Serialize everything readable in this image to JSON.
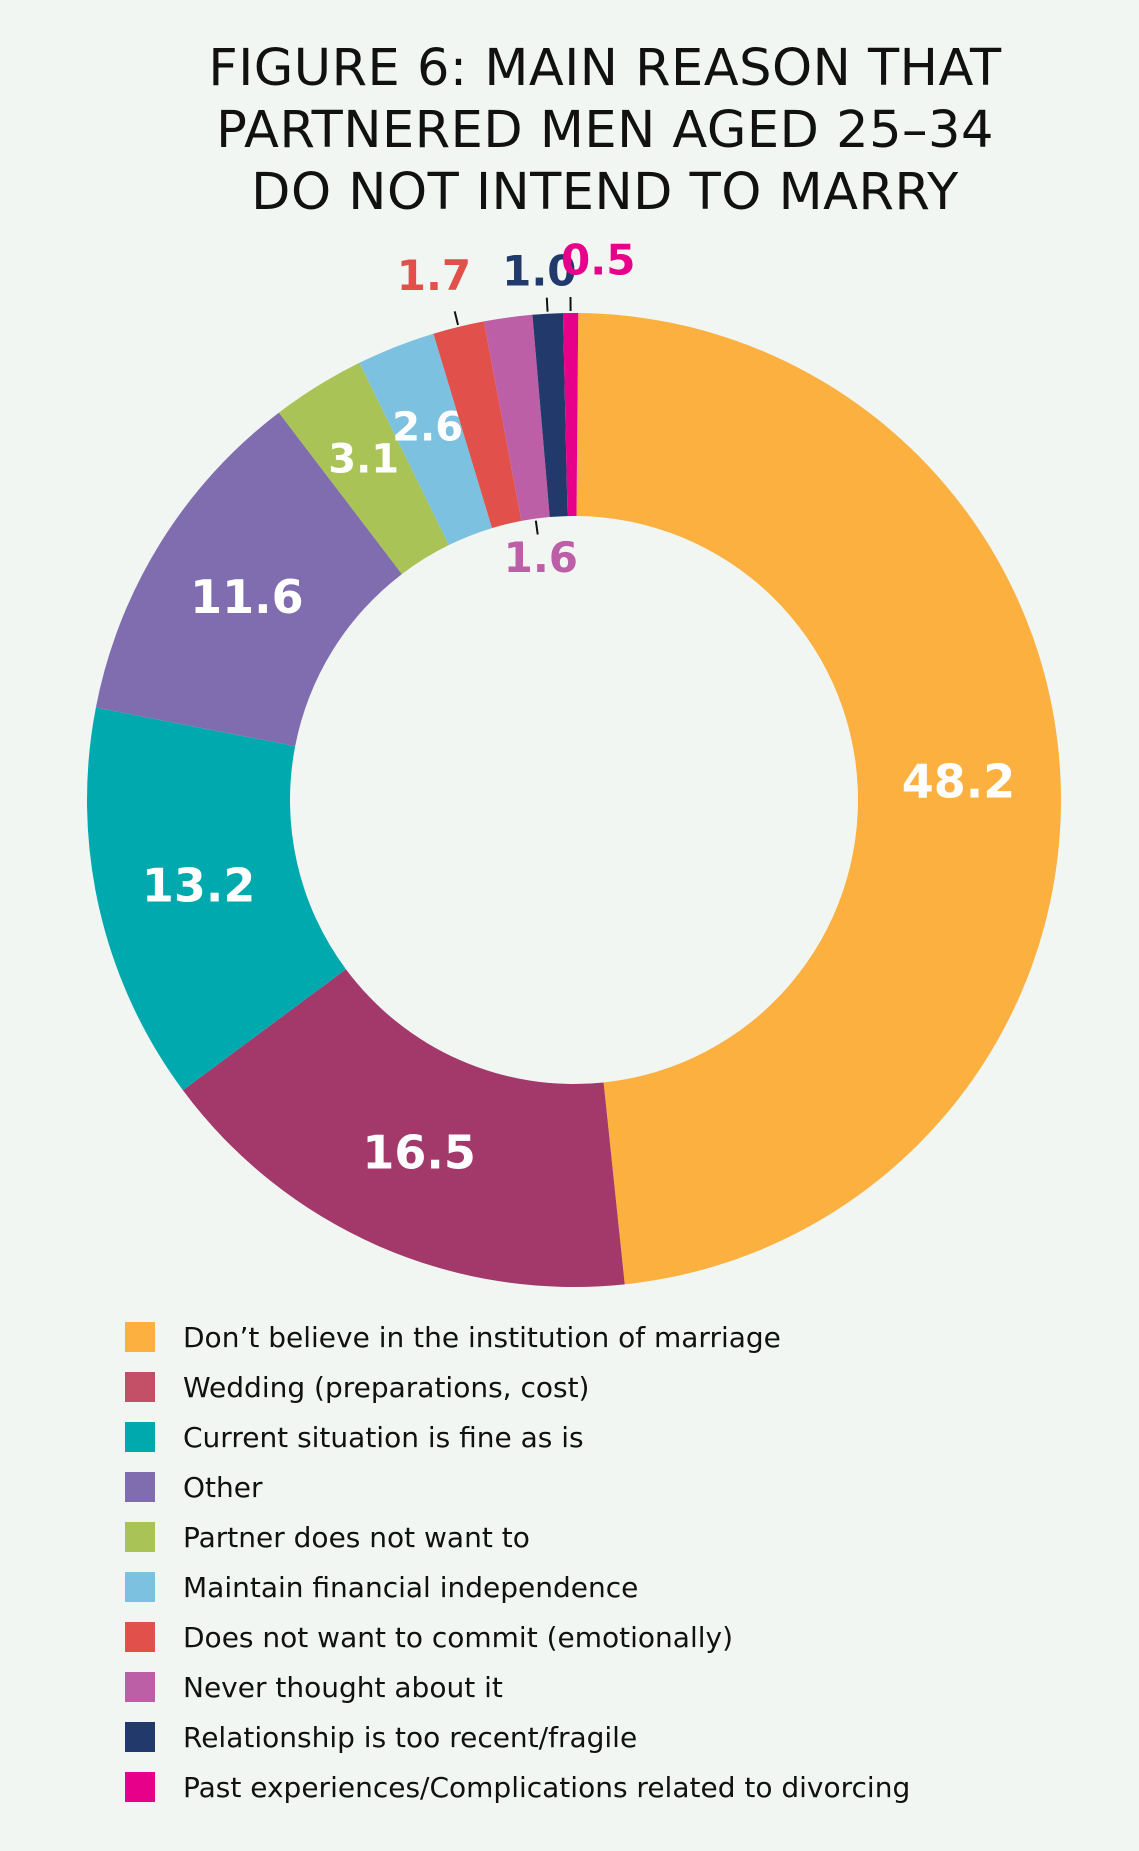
{
  "chart_data": {
    "type": "pie",
    "donut": true,
    "title_lines": [
      "FIGURE 6: MAIN REASON THAT",
      "PARTNERED MEN AGED 25–34",
      "DO NOT INTEND TO MARRY"
    ],
    "slices": [
      {
        "label": "Don’t believe in the institution of marriage",
        "value": 48.2,
        "value_label": "48.2",
        "color": "#fbb040"
      },
      {
        "label": "Wedding (preparations, cost)",
        "value": 16.5,
        "value_label": "16.5",
        "color": "#a3386a"
      },
      {
        "label": "Current situation is fine as is",
        "value": 13.2,
        "value_label": "13.2",
        "color": "#00a9ad"
      },
      {
        "label": "Other",
        "value": 11.6,
        "value_label": "11.6",
        "color": "#7f6db0"
      },
      {
        "label": "Partner does not want to",
        "value": 3.1,
        "value_label": "3.1",
        "color": "#a9c356"
      },
      {
        "label": "Maintain financial independence",
        "value": 2.6,
        "value_label": "2.6",
        "color": "#7dc1e0"
      },
      {
        "label": "Does not want to commit (emotionally)",
        "value": 1.7,
        "value_label": "1.7",
        "color": "#e2504c"
      },
      {
        "label": "Never thought about it",
        "value": 1.6,
        "value_label": "1.6",
        "color": "#bd5fa7"
      },
      {
        "label": "Relationship is too recent/fragile",
        "value": 1.0,
        "value_label": "1.0",
        "color": "#213a6b"
      },
      {
        "label": "Past experiences/Complications related to divorcing",
        "value": 0.5,
        "value_label": "0.5",
        "color": "#e6008a"
      }
    ],
    "legend_position": "bottom",
    "legend_swatch_colors": [
      "#fbb040",
      "#c35066",
      "#00a9ad",
      "#7f6db0",
      "#a9c356",
      "#7dc1e0",
      "#e2504c",
      "#bd5fa7",
      "#213a6b",
      "#e6008a"
    ]
  }
}
